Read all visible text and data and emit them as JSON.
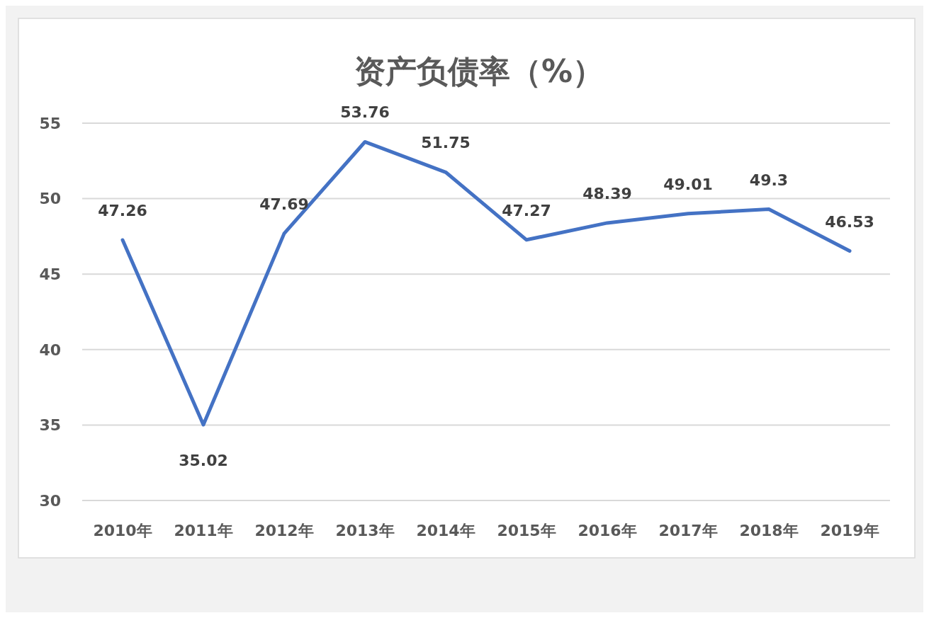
{
  "chart_data": {
    "type": "line",
    "title": "资产负债率（%）",
    "categories": [
      "2010年",
      "2011年",
      "2012年",
      "2013年",
      "2014年",
      "2015年",
      "2016年",
      "2017年",
      "2018年",
      "2019年"
    ],
    "series": [
      {
        "color": "#4472c4",
        "values": [
          47.26,
          35.02,
          47.69,
          53.76,
          51.75,
          47.27,
          48.39,
          49.01,
          49.3,
          46.53
        ]
      }
    ],
    "ylim": [
      30,
      55
    ],
    "yticks": [
      30,
      35,
      40,
      45,
      50,
      55
    ],
    "grid": "y",
    "data_labels": true,
    "marker": "none",
    "line_style": "solid"
  }
}
